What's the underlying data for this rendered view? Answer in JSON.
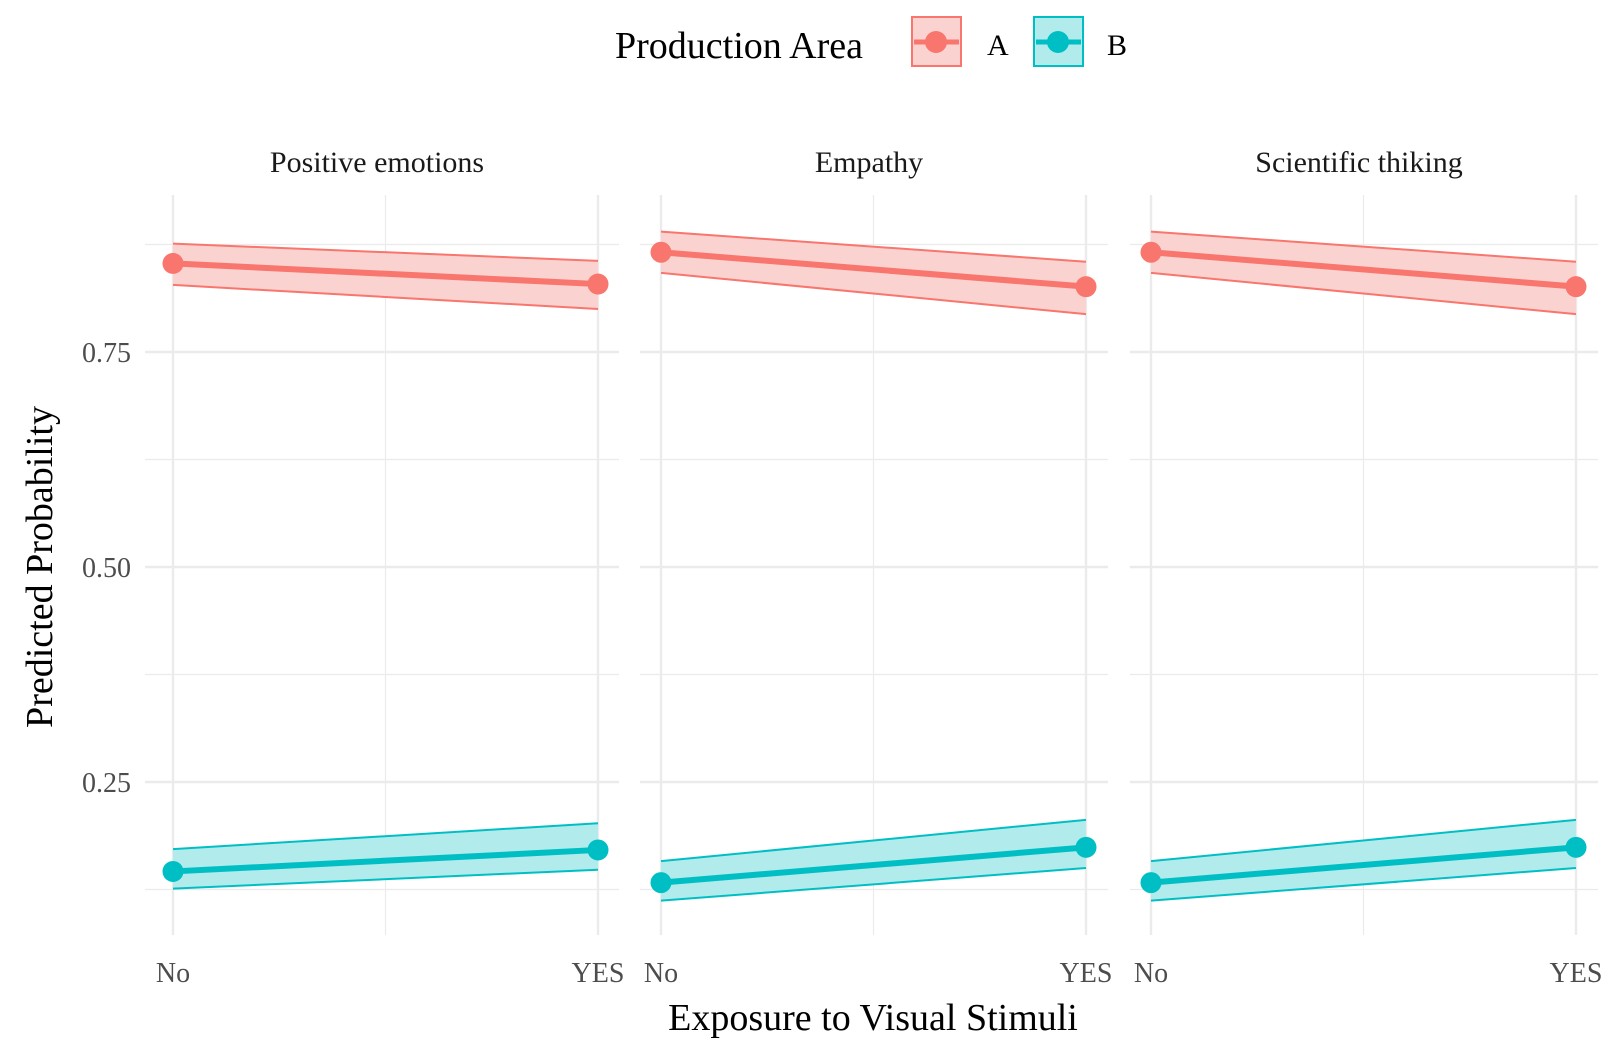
{
  "chart_data": {
    "type": "line",
    "title": "",
    "legend": {
      "title": "Production Area",
      "placement": "top",
      "entries": [
        {
          "name": "A",
          "color": "#F8766D",
          "fill": "#FAD3D0"
        },
        {
          "name": "B",
          "color": "#00BFC4",
          "fill": "#B2EBEC"
        }
      ]
    },
    "xlabel": "Exposure to Visual Stimuli",
    "ylabel": "Predicted Probability",
    "categories": [
      "No",
      "YES"
    ],
    "ylim": [
      0.1,
      0.95
    ],
    "yticks": [
      0.25,
      0.5,
      0.75
    ],
    "ytick_labels": [
      "0.25",
      "0.50",
      "0.75"
    ],
    "grid": true,
    "facets": [
      {
        "label": "Positive emotions",
        "series": [
          {
            "name": "A",
            "values": [
              0.853,
              0.829
            ],
            "lower": [
              0.828,
              0.8
            ],
            "upper": [
              0.876,
              0.856
            ]
          },
          {
            "name": "B",
            "values": [
              0.146,
              0.171
            ],
            "lower": [
              0.126,
              0.148
            ],
            "upper": [
              0.172,
              0.202
            ]
          }
        ]
      },
      {
        "label": "Empathy",
        "series": [
          {
            "name": "A",
            "values": [
              0.866,
              0.826
            ],
            "lower": [
              0.842,
              0.794
            ],
            "upper": [
              0.89,
              0.855
            ]
          },
          {
            "name": "B",
            "values": [
              0.133,
              0.174
            ],
            "lower": [
              0.112,
              0.15
            ],
            "upper": [
              0.158,
              0.206
            ]
          }
        ]
      },
      {
        "label": "Scientific thiking",
        "series": [
          {
            "name": "A",
            "values": [
              0.866,
              0.826
            ],
            "lower": [
              0.842,
              0.794
            ],
            "upper": [
              0.89,
              0.855
            ]
          },
          {
            "name": "B",
            "values": [
              0.133,
              0.174
            ],
            "lower": [
              0.112,
              0.15
            ],
            "upper": [
              0.158,
              0.206
            ]
          }
        ]
      }
    ]
  }
}
